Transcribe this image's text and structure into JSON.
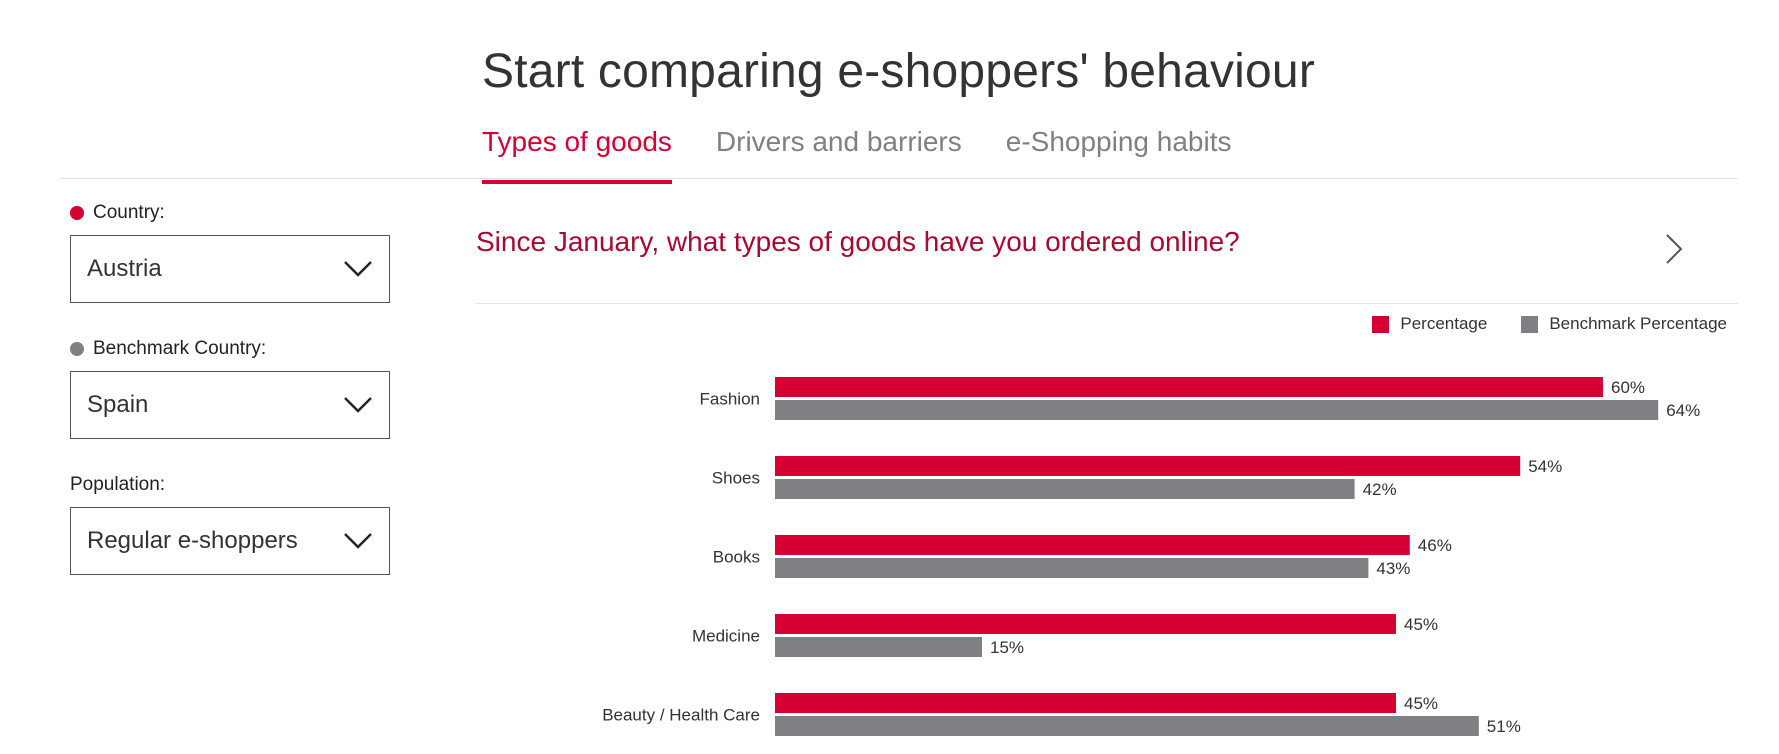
{
  "header": {
    "title": "Start comparing e-shoppers' behaviour"
  },
  "tabs": [
    {
      "label": "Types of goods",
      "active": true
    },
    {
      "label": "Drivers and barriers",
      "active": false
    },
    {
      "label": "e-Shopping habits",
      "active": false
    }
  ],
  "filters": {
    "country": {
      "label": "Country:",
      "value": "Austria",
      "dot_color": "#d40033"
    },
    "benchmark": {
      "label": "Benchmark Country:",
      "value": "Spain",
      "dot_color": "#808080"
    },
    "population": {
      "label": "Population:",
      "value": "Regular e-shoppers"
    }
  },
  "question": {
    "text": "Since January, what types of goods have you ordered online?",
    "icon": "chevron-right-icon"
  },
  "colors": {
    "accent": "#d40033",
    "benchmark": "#808084",
    "question": "#a8092e"
  },
  "chart_data": {
    "type": "bar",
    "orientation": "horizontal",
    "categories": [
      "Fashion",
      "Shoes",
      "Books",
      "Medicine",
      "Beauty / Health Care"
    ],
    "series": [
      {
        "name": "Percentage",
        "values": [
          60,
          54,
          46,
          45,
          45
        ],
        "labels": [
          "60%",
          "54%",
          "46%",
          "45%",
          "45%"
        ],
        "color": "#d40033"
      },
      {
        "name": "Benchmark Percentage",
        "values": [
          64,
          42,
          43,
          15,
          51
        ],
        "labels": [
          "64%",
          "42%",
          "43%",
          "15%",
          "51%"
        ],
        "color": "#808084"
      }
    ],
    "unit": "%",
    "xlim": [
      0,
      100
    ],
    "legend_position": "top-right",
    "grid": false
  }
}
